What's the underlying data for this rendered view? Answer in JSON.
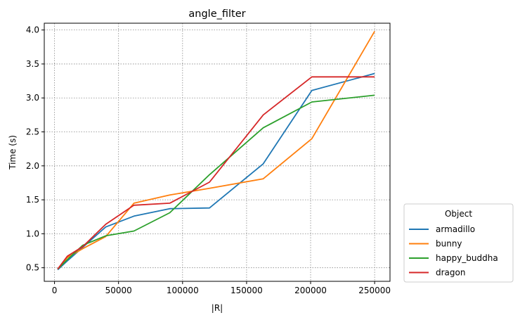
{
  "chart_data": {
    "type": "line",
    "title": "angle_filter",
    "xlabel": "|R|",
    "ylabel": "Time (s)",
    "xlim": [
      -8000,
      262000
    ],
    "ylim": [
      0.3,
      4.1
    ],
    "xticks": [
      0,
      50000,
      100000,
      150000,
      200000,
      250000
    ],
    "yticks": [
      0.5,
      1.0,
      1.5,
      2.0,
      2.5,
      3.0,
      3.5,
      4.0
    ],
    "xtick_labels": [
      "0",
      "50000",
      "100000",
      "150000",
      "200000",
      "250000"
    ],
    "ytick_labels": [
      "0.5",
      "1.0",
      "1.5",
      "2.0",
      "2.5",
      "3.0",
      "3.5",
      "4.0"
    ],
    "grid": true,
    "legend": {
      "title": "Object",
      "placement": "outside-right-bottom"
    },
    "series": [
      {
        "name": "armadillo",
        "color": "#1f77b4",
        "x": [
          2500,
          10000,
          22000,
          40000,
          62000,
          90000,
          121000,
          163000,
          201000,
          250000
        ],
        "y": [
          0.47,
          0.6,
          0.8,
          1.1,
          1.26,
          1.37,
          1.38,
          2.03,
          3.11,
          3.36
        ]
      },
      {
        "name": "bunny",
        "color": "#ff7f0e",
        "x": [
          2500,
          10000,
          22000,
          40000,
          62000,
          90000,
          121000,
          163000,
          201000,
          250000
        ],
        "y": [
          0.48,
          0.65,
          0.78,
          0.96,
          1.45,
          1.57,
          1.67,
          1.81,
          2.4,
          3.98
        ]
      },
      {
        "name": "happy_buddha",
        "color": "#2ca02c",
        "x": [
          2500,
          10000,
          22000,
          40000,
          62000,
          90000,
          121000,
          163000,
          201000,
          250000
        ],
        "y": [
          0.48,
          0.62,
          0.83,
          0.97,
          1.04,
          1.31,
          1.87,
          2.56,
          2.94,
          3.04
        ]
      },
      {
        "name": "dragon",
        "color": "#d62728",
        "x": [
          2500,
          10000,
          22000,
          40000,
          62000,
          90000,
          121000,
          163000,
          201000,
          250000
        ],
        "y": [
          0.48,
          0.67,
          0.81,
          1.14,
          1.42,
          1.45,
          1.76,
          2.75,
          3.31,
          3.31
        ]
      }
    ]
  }
}
